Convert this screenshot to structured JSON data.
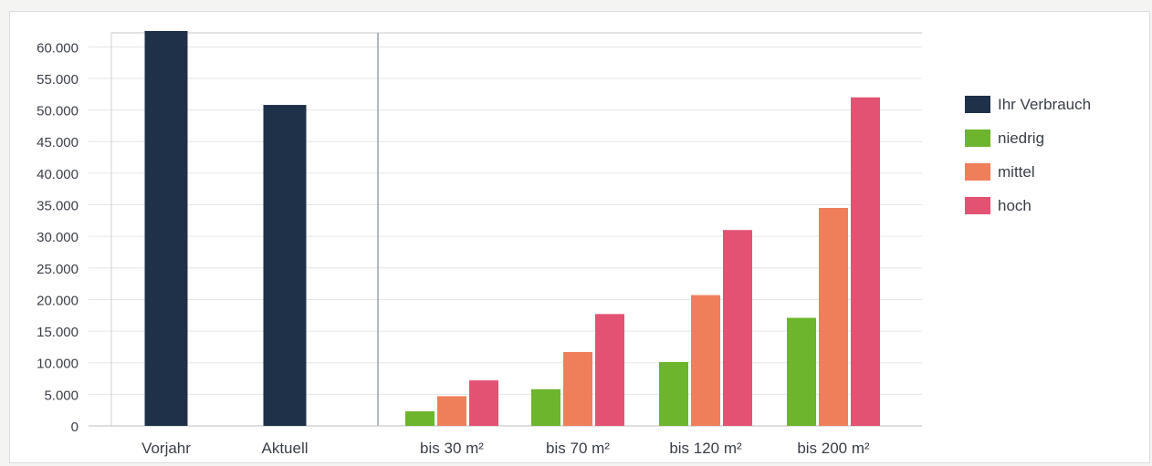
{
  "chart_data": {
    "type": "bar",
    "title": "",
    "xlabel": "",
    "ylabel": "",
    "ylim": [
      0,
      62500
    ],
    "yticks": [
      0,
      5000,
      10000,
      15000,
      20000,
      25000,
      30000,
      35000,
      40000,
      45000,
      50000,
      55000,
      60000
    ],
    "ytick_labels": [
      "0",
      "5.000",
      "10.000",
      "15.000",
      "20.000",
      "25.000",
      "30.000",
      "35.000",
      "40.000",
      "45.000",
      "50.000",
      "55.000",
      "60.000"
    ],
    "grid": true,
    "legend_position": "right",
    "panels": [
      {
        "categories": [
          "Vorjahr",
          "Aktuell"
        ],
        "series": [
          {
            "name": "Ihr Verbrauch",
            "color": "#1f3049",
            "values": [
              62500,
              50800
            ]
          }
        ]
      },
      {
        "categories": [
          "bis 30 m²",
          "bis 70 m²",
          "bis 120 m²",
          "bis 200 m²"
        ],
        "series": [
          {
            "name": "niedrig",
            "color": "#6cb52d",
            "values": [
              2300,
              5800,
              10100,
              17100
            ]
          },
          {
            "name": "mittel",
            "color": "#ee7f5a",
            "values": [
              4700,
              11700,
              20700,
              34500
            ]
          },
          {
            "name": "hoch",
            "color": "#e35272",
            "values": [
              7200,
              17700,
              31000,
              52000
            ]
          }
        ]
      }
    ],
    "legend": [
      {
        "label": "Ihr Verbrauch",
        "color": "#1f3049"
      },
      {
        "label": "niedrig",
        "color": "#6cb52d"
      },
      {
        "label": "mittel",
        "color": "#ee7f5a"
      },
      {
        "label": "hoch",
        "color": "#e35272"
      }
    ]
  }
}
